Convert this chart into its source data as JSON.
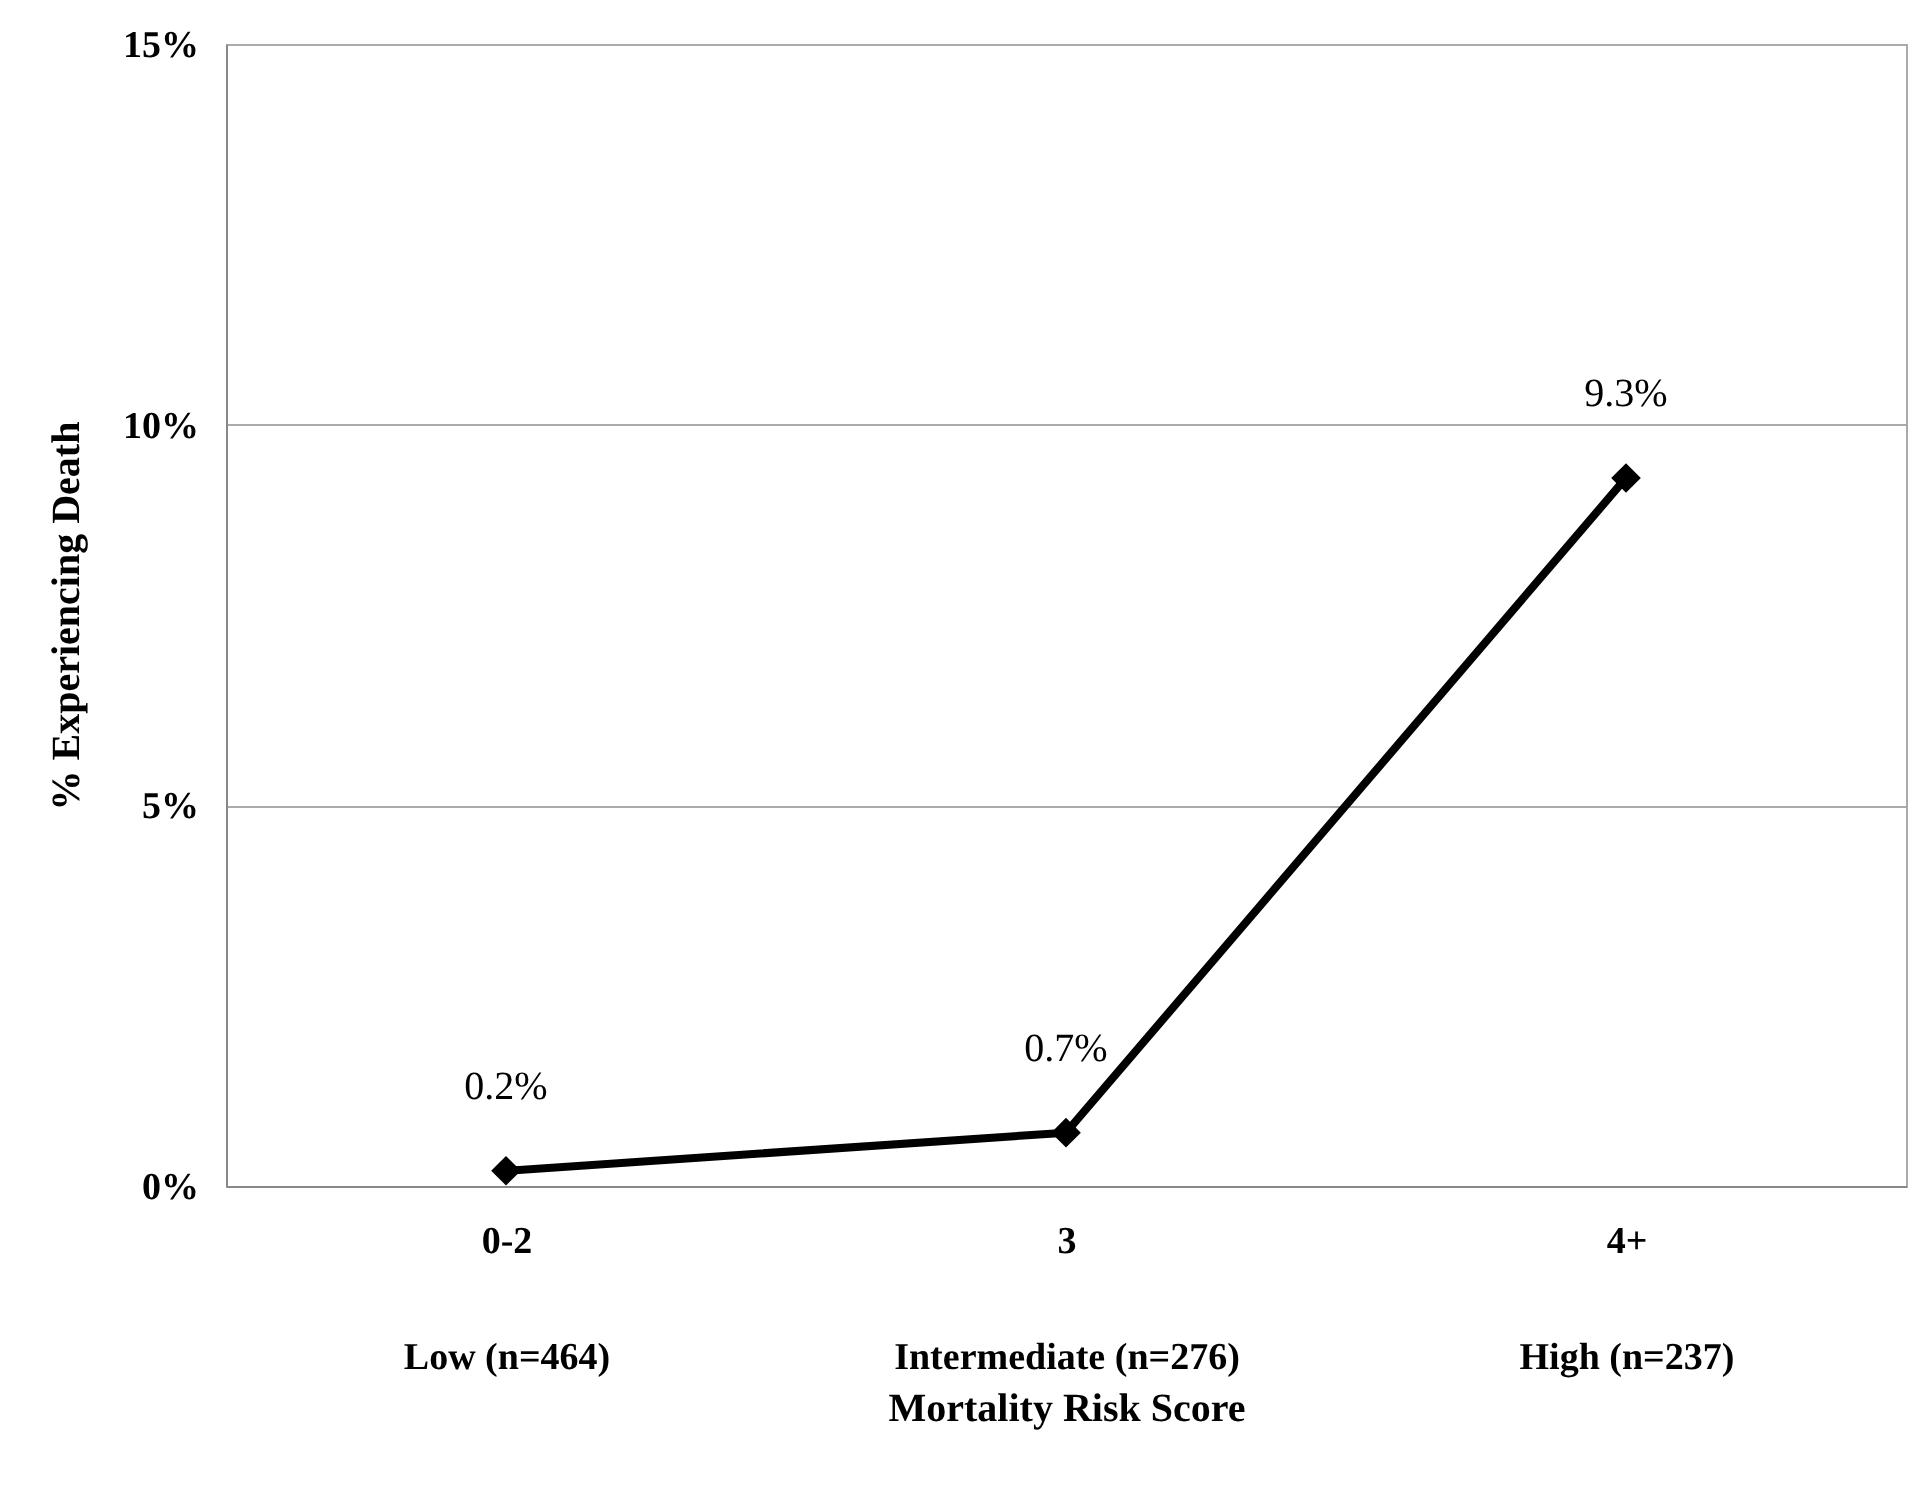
{
  "chart_data": {
    "type": "line",
    "xlabel": "Mortality Risk Score",
    "ylabel": "% Experiencing Death",
    "categories": [
      "0-2\nLow (n=464)",
      "3\nIntermediate (n=276)",
      "4+\nHigh (n=237)"
    ],
    "series": [
      {
        "color": "#000000",
        "values": [
          0.2,
          0.7,
          9.3
        ],
        "value_labels": [
          "0.2%",
          "0.7%",
          "9.3%"
        ]
      }
    ],
    "ylim": [
      0,
      15
    ],
    "yticks": [
      {
        "value": 0,
        "label": "0%"
      },
      {
        "value": 5,
        "label": "5%"
      },
      {
        "value": 10,
        "label": "10%"
      },
      {
        "value": 15,
        "label": "15%"
      }
    ],
    "grid": "y",
    "marker": "diamond",
    "line_style": "solid"
  }
}
